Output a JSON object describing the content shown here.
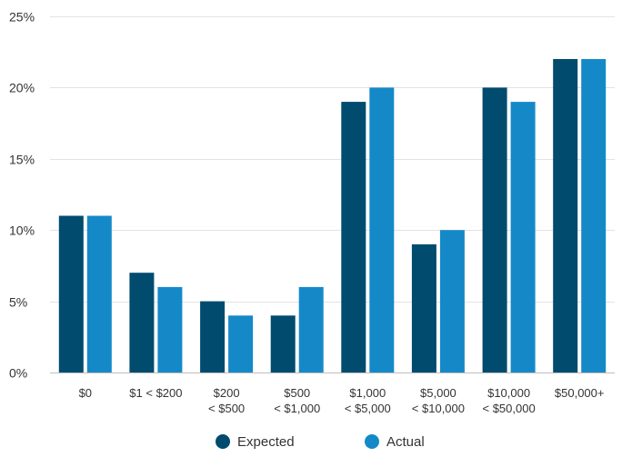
{
  "chart_data": {
    "type": "bar",
    "categories": [
      [
        "$0"
      ],
      [
        "$1 < $200"
      ],
      [
        "$200",
        "< $500"
      ],
      [
        "$500",
        "< $1,000"
      ],
      [
        "$1,000",
        "< $5,000"
      ],
      [
        "$5,000",
        "< $10,000"
      ],
      [
        "$10,000",
        "< $50,000"
      ],
      [
        "$50,000+"
      ]
    ],
    "series": [
      {
        "name": "Expected",
        "color": "#004b6e",
        "values": [
          11,
          7,
          5,
          4,
          19,
          9,
          20,
          22
        ]
      },
      {
        "name": "Actual",
        "color": "#1589c8",
        "values": [
          11,
          6,
          4,
          6,
          20,
          10,
          19,
          22
        ]
      }
    ],
    "yticks": [
      "0%",
      "5%",
      "10%",
      "15%",
      "20%",
      "25%"
    ],
    "ytick_values": [
      0,
      5,
      10,
      15,
      20,
      25
    ],
    "ylim": [
      0,
      25
    ],
    "grid": true,
    "legend_position": "bottom-center"
  }
}
